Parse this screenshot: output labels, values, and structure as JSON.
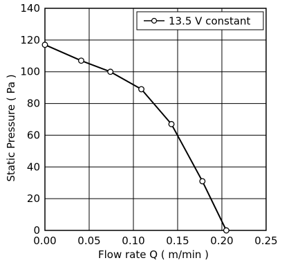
{
  "chart_data": {
    "type": "line",
    "xlabel": "Flow rate Q ( m/min )",
    "ylabel": "Static Pressure ( Pa )",
    "xlim": [
      0,
      0.25
    ],
    "ylim": [
      0,
      140
    ],
    "xticks": [
      "0.00",
      "0.05",
      "0.10",
      "0.15",
      "0.20",
      "0.25"
    ],
    "yticks": [
      "0",
      "20",
      "40",
      "60",
      "80",
      "100",
      "120",
      "140"
    ],
    "grid": true,
    "legend_position": "top-right",
    "series": [
      {
        "name": "13.5 V constant",
        "color": "#000000",
        "marker": "open-circle",
        "x": [
          0.0,
          0.041,
          0.074,
          0.109,
          0.143,
          0.178,
          0.205
        ],
        "y": [
          117,
          107,
          100,
          89,
          67,
          31,
          0
        ]
      }
    ]
  }
}
